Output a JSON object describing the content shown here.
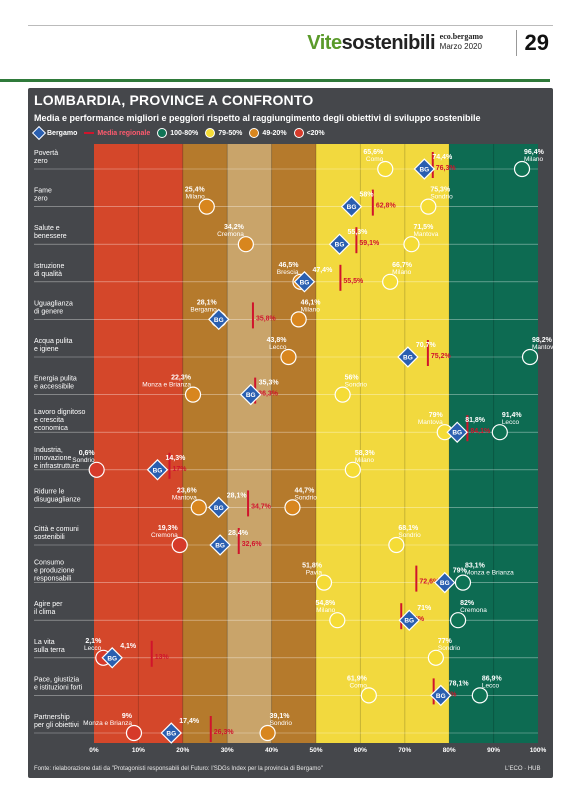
{
  "header": {
    "brand_part1": "Vite",
    "brand_part2": "sostenibili",
    "paper_name": "eco.bergamo",
    "date": "Marzo 2020",
    "page_number": "29"
  },
  "title": "LOMBARDIA, PROVINCE A CONFRONTO",
  "subtitle": "Media e performance migliori e peggiori rispetto al raggiungimento degli obiettivi di sviluppo sostenibile",
  "legend": {
    "bergamo": "Bergamo",
    "bg_badge": "BG",
    "media": "Media regionale",
    "c1": "100-80%",
    "c2": "79-50%",
    "c3": "49-20%",
    "c4": "<20%"
  },
  "source": "Fonte: rielaborazione dati da \"Protagonisti responsabili del Futuro: l'SDGs Index per la provincia di Bergamo\"",
  "credit": "L'ECO · HUB",
  "colors": {
    "band_red": "#d4472a",
    "band_brown": "#b57a2c",
    "band_tan": "#c9a46a",
    "band_yellow": "#f2d93e",
    "band_green": "#0d6b52",
    "circle_red": "#d63a2a",
    "circle_orange": "#d8861e",
    "circle_yellow": "#f5dc36",
    "circle_green": "#0f7355",
    "bergamo": "#2a5fb0",
    "media": "#d0142c"
  },
  "chart_data": {
    "type": "dot-range",
    "x_axis_ticks": [
      "0%",
      "10%",
      "20%",
      "30%",
      "40%",
      "50%",
      "60%",
      "70%",
      "80%",
      "90%",
      "100%"
    ],
    "xlim": [
      0,
      100
    ],
    "bands": [
      {
        "range": [
          0,
          20
        ],
        "label": "<20%"
      },
      {
        "range": [
          20,
          50
        ],
        "label": "49-20%"
      },
      {
        "range": [
          50,
          80
        ],
        "label": "79-50%"
      },
      {
        "range": [
          80,
          100
        ],
        "label": "100-80%"
      }
    ],
    "rows": [
      {
        "name": "Povertà\nzero",
        "low": {
          "value": 65.6,
          "label": "65,6%",
          "province": "Como"
        },
        "high": {
          "value": 96.4,
          "label": "96,4%",
          "province": "Milano"
        },
        "bergamo": {
          "value": 74.4,
          "label": "74,4%"
        },
        "media": {
          "value": 76.3,
          "label": "76,3%"
        }
      },
      {
        "name": "Fame\nzero",
        "low": {
          "value": 25.4,
          "label": "25,4%",
          "province": "Milano"
        },
        "high": {
          "value": 75.3,
          "label": "75,3%",
          "province": "Sondrio"
        },
        "bergamo": {
          "value": 58,
          "label": "58%"
        },
        "media": {
          "value": 62.8,
          "label": "62,8%"
        }
      },
      {
        "name": "Salute e\nbenessere",
        "low": {
          "value": 34.2,
          "label": "34,2%",
          "province": "Cremona"
        },
        "high": {
          "value": 71.5,
          "label": "71,5%",
          "province": "Mantova"
        },
        "bergamo": {
          "value": 55.3,
          "label": "55,3%"
        },
        "media": {
          "value": 59.1,
          "label": "59,1%"
        }
      },
      {
        "name": "Istruzione\ndi qualità",
        "low": {
          "value": 46.5,
          "label": "46,5%",
          "province": "Brescia"
        },
        "high": {
          "value": 66.7,
          "label": "66,7%",
          "province": "Milano"
        },
        "bergamo": {
          "value": 47.4,
          "label": "47,4%"
        },
        "media": {
          "value": 55.5,
          "label": "55,5%"
        }
      },
      {
        "name": "Uguaglianza\ndi genere",
        "low": {
          "value": 28.1,
          "label": "28,1%",
          "province": "Bergamo"
        },
        "high": {
          "value": 46.1,
          "label": "46,1%",
          "province": "Milano"
        },
        "bergamo": {
          "value": 28.1,
          "label": ""
        },
        "media": {
          "value": 35.8,
          "label": "35,8%"
        }
      },
      {
        "name": "Acqua pulita\ne igiene",
        "low": {
          "value": 43.8,
          "label": "43,8%",
          "province": "Lecco"
        },
        "high": {
          "value": 98.2,
          "label": "98,2%",
          "province": "Mantova"
        },
        "bergamo": {
          "value": 70.7,
          "label": "70,7%"
        },
        "media": {
          "value": 75.2,
          "label": "75,2%"
        }
      },
      {
        "name": "Energia pulita\ne accessibile",
        "low": {
          "value": 22.3,
          "label": "22,3%",
          "province": "Monza e Brianza"
        },
        "high": {
          "value": 56,
          "label": "56%",
          "province": "Sondrio"
        },
        "bergamo": {
          "value": 35.3,
          "label": "35,3%"
        },
        "media": {
          "value": 36.3,
          "label": "36,3%"
        }
      },
      {
        "name": "Lavoro dignitoso\ne crescita\neconomica",
        "low": {
          "value": 79,
          "label": "79%",
          "province": "Mantova"
        },
        "high": {
          "value": 91.4,
          "label": "91,4%",
          "province": "Lecco"
        },
        "bergamo": {
          "value": 81.8,
          "label": "81,8%"
        },
        "media": {
          "value": 84.1,
          "label": "84,1%"
        }
      },
      {
        "name": "Industria,\ninnovazione\ne infrastrutture",
        "low": {
          "value": 0.6,
          "label": "0,6%",
          "province": "Sondrio"
        },
        "high": {
          "value": 58.3,
          "label": "58,3%",
          "province": "Milano"
        },
        "bergamo": {
          "value": 14.3,
          "label": "14,3%"
        },
        "media": {
          "value": 17,
          "label": "17%"
        }
      },
      {
        "name": "Ridurre le\ndisuguaglianze",
        "low": {
          "value": 23.6,
          "label": "23,6%",
          "province": "Mantova"
        },
        "high": {
          "value": 44.7,
          "label": "44,7%",
          "province": "Sondrio"
        },
        "bergamo": {
          "value": 28.1,
          "label": "28,1%"
        },
        "media": {
          "value": 34.7,
          "label": "34,7%"
        }
      },
      {
        "name": "Città e comuni\nsostenibili",
        "low": {
          "value": 19.3,
          "label": "19,3%",
          "province": "Cremona"
        },
        "high": {
          "value": 68.1,
          "label": "68,1%",
          "province": "Sondrio"
        },
        "bergamo": {
          "value": 28.4,
          "label": "28,4%"
        },
        "media": {
          "value": 32.6,
          "label": "32,6%"
        }
      },
      {
        "name": "Consumo\ne produzione\nresponsabili",
        "low": {
          "value": 51.8,
          "label": "51,8%",
          "province": "Pavia"
        },
        "high": {
          "value": 83.1,
          "label": "83,1%",
          "province": "Monza e Brianza"
        },
        "bergamo": {
          "value": 79,
          "label": "79%"
        },
        "media": {
          "value": 72.6,
          "label": "72,6%"
        }
      },
      {
        "name": "Agire per\nil clima",
        "low": {
          "value": 54.8,
          "label": "54,8%",
          "province": "Milano"
        },
        "high": {
          "value": 82,
          "label": "82%",
          "province": "Cremona"
        },
        "bergamo": {
          "value": 71,
          "label": "71%"
        },
        "media": {
          "value": 69.2,
          "label": "69,2%"
        }
      },
      {
        "name": "La vita\nsulla terra",
        "low": {
          "value": 2.1,
          "label": "2,1%",
          "province": "Lecco"
        },
        "high": {
          "value": 77,
          "label": "77%",
          "province": "Sondrio"
        },
        "bergamo": {
          "value": 4.1,
          "label": "4,1%"
        },
        "media": {
          "value": 13,
          "label": "13%"
        }
      },
      {
        "name": "Pace, giustizia\ne istituzioni forti",
        "low": {
          "value": 61.9,
          "label": "61,9%",
          "province": "Como"
        },
        "high": {
          "value": 86.9,
          "label": "86,9%",
          "province": "Lecco"
        },
        "bergamo": {
          "value": 78.1,
          "label": "78,1%"
        },
        "media": {
          "value": 76.5,
          "label": "76,5%"
        }
      },
      {
        "name": "Partnership\nper gli obiettivi",
        "low": {
          "value": 9,
          "label": "9%",
          "province": "Monza e Brianza"
        },
        "high": {
          "value": 39.1,
          "label": "39,1%",
          "province": "Sondrio"
        },
        "bergamo": {
          "value": 17.4,
          "label": "17,4%"
        },
        "media": {
          "value": 26.3,
          "label": "26,3%"
        }
      }
    ]
  }
}
